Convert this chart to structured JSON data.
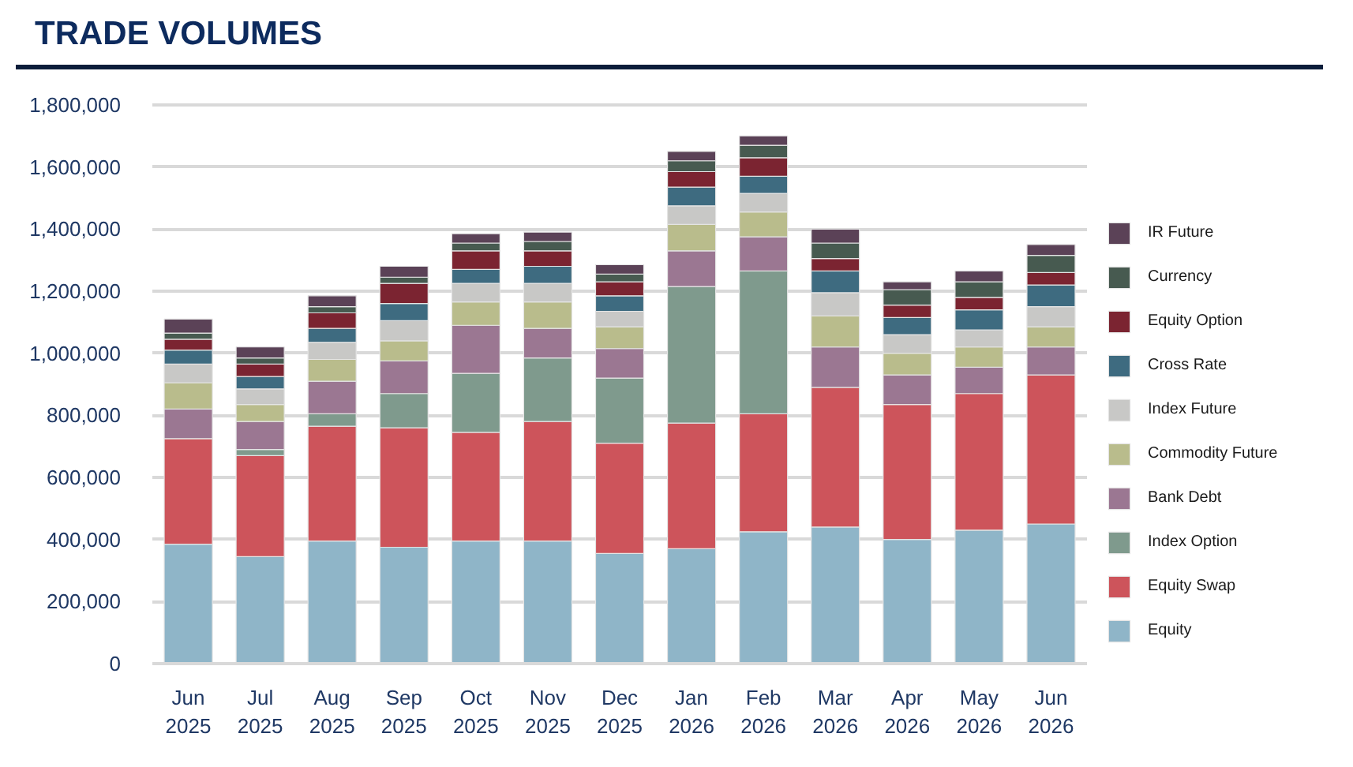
{
  "chart_data": {
    "type": "bar",
    "title": "TRADE VOLUMES",
    "stacked": true,
    "legend": "right",
    "grid": "y",
    "categories": [
      "Jun 2025",
      "Jul 2025",
      "Aug 2025",
      "Sep 2025",
      "Oct 2025",
      "Nov 2025",
      "Dec 2025",
      "Jan 2026",
      "Feb 2026",
      "Mar 2026",
      "Apr 2026",
      "May 2026",
      "Jun 2026"
    ],
    "ylim": [
      0,
      1810000
    ],
    "yticks": [
      0,
      {
        "value": 200000,
        "label": "200,000"
      },
      {
        "value": 400000,
        "label": "400,000"
      },
      {
        "value": 600000,
        "label": "600,000"
      },
      {
        "value": 800000,
        "label": "800,000"
      },
      {
        "value": 1000000,
        "label": "1,000,000"
      },
      {
        "value": 1200000,
        "label": "1,200,000"
      },
      {
        "value": 1400000,
        "label": "1,400,000"
      },
      {
        "value": 1600000,
        "label": "1,600,000"
      },
      {
        "value": 1800000,
        "label": "1,800,000"
      }
    ],
    "series": [
      {
        "name": "Equity",
        "color": "#8fb5c8",
        "values": [
          385000,
          345000,
          395000,
          375000,
          395000,
          395000,
          355000,
          370000,
          425000,
          440000,
          400000,
          430000,
          450000
        ]
      },
      {
        "name": "Equity Swap",
        "color": "#cd545b",
        "values": [
          340000,
          325000,
          370000,
          385000,
          350000,
          385000,
          355000,
          405000,
          380000,
          450000,
          435000,
          440000,
          480000
        ]
      },
      {
        "name": "Index Option",
        "color": "#7f9a8d",
        "values": [
          null,
          20000,
          40000,
          110000,
          190000,
          205000,
          210000,
          440000,
          460000,
          null,
          null,
          null,
          null
        ]
      },
      {
        "name": "Bank Debt",
        "color": "#9b7792",
        "values": [
          95000,
          90000,
          105000,
          105000,
          155000,
          95000,
          95000,
          115000,
          110000,
          130000,
          95000,
          85000,
          90000
        ]
      },
      {
        "name": "Commodity Future",
        "color": "#b9bc8c",
        "values": [
          85000,
          55000,
          70000,
          65000,
          75000,
          85000,
          70000,
          85000,
          80000,
          100000,
          70000,
          65000,
          65000
        ]
      },
      {
        "name": "Index Future",
        "color": "#c8c8c6",
        "values": [
          60000,
          50000,
          55000,
          65000,
          60000,
          60000,
          50000,
          60000,
          60000,
          75000,
          60000,
          55000,
          65000
        ]
      },
      {
        "name": "Cross Rate",
        "color": "#3e6b80",
        "values": [
          45000,
          40000,
          45000,
          55000,
          45000,
          55000,
          50000,
          60000,
          55000,
          70000,
          55000,
          65000,
          70000
        ]
      },
      {
        "name": "Equity Option",
        "color": "#7b2431",
        "values": [
          35000,
          40000,
          50000,
          65000,
          60000,
          50000,
          45000,
          50000,
          60000,
          40000,
          40000,
          40000,
          40000
        ]
      },
      {
        "name": "Currency",
        "color": "#475a50",
        "values": [
          20000,
          20000,
          20000,
          20000,
          25000,
          30000,
          25000,
          35000,
          40000,
          50000,
          50000,
          50000,
          55000
        ]
      },
      {
        "name": "IR Future",
        "color": "#5b4257",
        "values": [
          45000,
          35000,
          35000,
          35000,
          30000,
          30000,
          30000,
          30000,
          30000,
          45000,
          25000,
          35000,
          35000
        ]
      }
    ]
  }
}
